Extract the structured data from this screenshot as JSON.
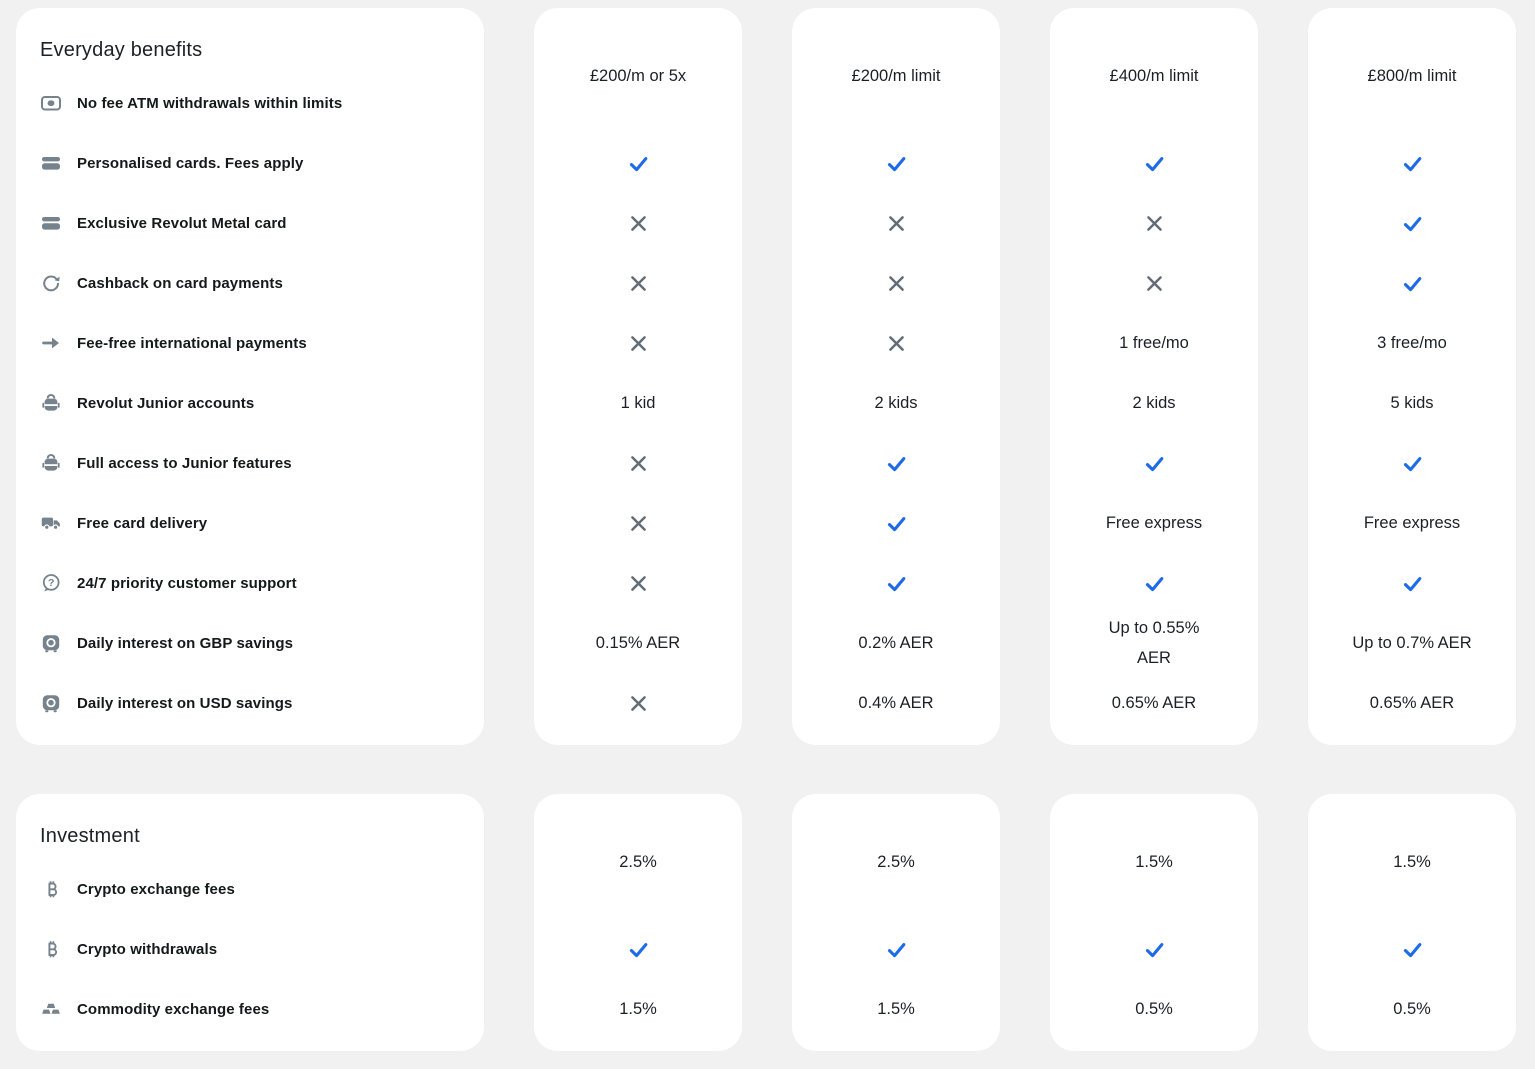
{
  "theme": {
    "page_bg": "#f1f1f2",
    "card_bg": "#ffffff",
    "check_blue": "#1e6be8",
    "cross_gray": "#626c76",
    "icon_gray": "#76828c",
    "label_color": "#14191a",
    "value_color": "#1b2027"
  },
  "sections": [
    {
      "title": "Everyday benefits",
      "features": [
        {
          "icon": "banknote",
          "label": "No fee ATM withdrawals within limits"
        },
        {
          "icon": "card",
          "label": "Personalised cards. Fees apply"
        },
        {
          "icon": "card",
          "label": "Exclusive Revolut Metal card"
        },
        {
          "icon": "cashback",
          "label": "Cashback on card payments"
        },
        {
          "icon": "arrow-right",
          "label": "Fee-free international payments"
        },
        {
          "icon": "backpack",
          "label": "Revolut Junior accounts"
        },
        {
          "icon": "backpack",
          "label": "Full access to Junior features"
        },
        {
          "icon": "truck",
          "label": "Free card delivery"
        },
        {
          "icon": "chat-question",
          "label": "24/7 priority customer support"
        },
        {
          "icon": "vault",
          "label": "Daily interest on GBP savings"
        },
        {
          "icon": "vault",
          "label": "Daily interest on USD savings"
        }
      ],
      "plans": [
        {
          "values": [
            {
              "type": "text",
              "text": "£200/m or 5x"
            },
            {
              "type": "check"
            },
            {
              "type": "cross"
            },
            {
              "type": "cross"
            },
            {
              "type": "cross"
            },
            {
              "type": "text",
              "text": "1 kid"
            },
            {
              "type": "cross"
            },
            {
              "type": "cross"
            },
            {
              "type": "cross"
            },
            {
              "type": "text",
              "text": "0.15% AER"
            },
            {
              "type": "cross"
            }
          ]
        },
        {
          "values": [
            {
              "type": "text",
              "text": "£200/m limit"
            },
            {
              "type": "check"
            },
            {
              "type": "cross"
            },
            {
              "type": "cross"
            },
            {
              "type": "cross"
            },
            {
              "type": "text",
              "text": "2 kids"
            },
            {
              "type": "check"
            },
            {
              "type": "check"
            },
            {
              "type": "check"
            },
            {
              "type": "text",
              "text": "0.2% AER"
            },
            {
              "type": "text",
              "text": "0.4% AER"
            }
          ]
        },
        {
          "values": [
            {
              "type": "text",
              "text": "£400/m limit"
            },
            {
              "type": "check"
            },
            {
              "type": "cross"
            },
            {
              "type": "cross"
            },
            {
              "type": "text",
              "text": "1 free/mo"
            },
            {
              "type": "text",
              "text": "2 kids"
            },
            {
              "type": "check"
            },
            {
              "type": "text",
              "text": "Free express"
            },
            {
              "type": "check"
            },
            {
              "type": "text",
              "text": "Up to 0.55%\nAER"
            },
            {
              "type": "text",
              "text": "0.65% AER"
            }
          ]
        },
        {
          "values": [
            {
              "type": "text",
              "text": "£800/m limit"
            },
            {
              "type": "check"
            },
            {
              "type": "check"
            },
            {
              "type": "check"
            },
            {
              "type": "text",
              "text": "3 free/mo"
            },
            {
              "type": "text",
              "text": "5 kids"
            },
            {
              "type": "check"
            },
            {
              "type": "text",
              "text": "Free express"
            },
            {
              "type": "check"
            },
            {
              "type": "text",
              "text": "Up to 0.7% AER"
            },
            {
              "type": "text",
              "text": "0.65% AER"
            }
          ]
        }
      ]
    },
    {
      "title": "Investment",
      "features": [
        {
          "icon": "bitcoin",
          "label": "Crypto exchange fees"
        },
        {
          "icon": "bitcoin",
          "label": "Crypto withdrawals"
        },
        {
          "icon": "gold",
          "label": "Commodity exchange fees"
        }
      ],
      "plans": [
        {
          "values": [
            {
              "type": "text",
              "text": "2.5%"
            },
            {
              "type": "check"
            },
            {
              "type": "text",
              "text": "1.5%"
            }
          ]
        },
        {
          "values": [
            {
              "type": "text",
              "text": "2.5%"
            },
            {
              "type": "check"
            },
            {
              "type": "text",
              "text": "1.5%"
            }
          ]
        },
        {
          "values": [
            {
              "type": "text",
              "text": "1.5%"
            },
            {
              "type": "check"
            },
            {
              "type": "text",
              "text": "0.5%"
            }
          ]
        },
        {
          "values": [
            {
              "type": "text",
              "text": "1.5%"
            },
            {
              "type": "check"
            },
            {
              "type": "text",
              "text": "0.5%"
            }
          ]
        }
      ]
    }
  ]
}
